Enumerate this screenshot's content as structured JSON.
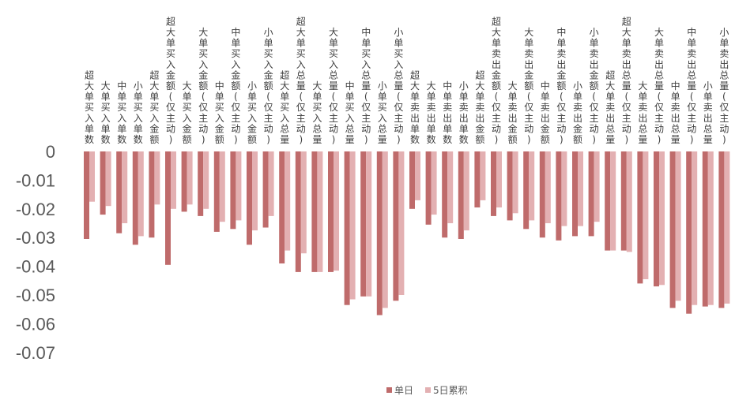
{
  "chart_data": {
    "type": "bar",
    "title": "",
    "xlabel": "",
    "ylabel": "",
    "ylim": [
      -0.07,
      0
    ],
    "yticks": [
      "0",
      "-0.01",
      "-0.02",
      "-0.03",
      "-0.04",
      "-0.05",
      "-0.06",
      "-0.07"
    ],
    "grid": false,
    "legend_position": "bottom",
    "categories": [
      "超大单买入单数",
      "大单买入单数",
      "中单买入单数",
      "小单买入单数",
      "超大单买入金额",
      "超大单买入金额(仅主动)",
      "大单买入金额",
      "大单买入金额(仅主动)",
      "中单买入金额",
      "中单买入金额(仅主动)",
      "小单买入金额",
      "小单买入金额(仅主动)",
      "超大单买入总量",
      "超大单买入总量(仅主动)",
      "大单买入总量",
      "大单买入总量(仅主动)",
      "中单买入总量",
      "中单买入总量(仅主动)",
      "小单买入总量",
      "小单买入总量(仅主动)",
      "超大单卖出单数",
      "大单卖出单数",
      "中单卖出单数",
      "小单卖出单数",
      "超大单卖出金额",
      "超大单卖出金额(仅主动)",
      "大单卖出金额",
      "大单卖出金额(仅主动)",
      "中单卖出金额",
      "中单卖出金额(仅主动)",
      "小单卖出金额",
      "小单卖出金额(仅主动)",
      "超大单卖出总量",
      "超大单卖出总量(仅主动)",
      "大单卖出总量",
      "大单卖出总量(仅主动)",
      "中单卖出总量",
      "中单卖出总量(仅主动)",
      "小单卖出总量",
      "小单卖出总量(仅主动)"
    ],
    "series": [
      {
        "name": "单日",
        "color": "#bf6b6b",
        "values": [
          -0.0305,
          -0.022,
          -0.0285,
          -0.0325,
          -0.03,
          -0.0395,
          -0.021,
          -0.0225,
          -0.028,
          -0.027,
          -0.0325,
          -0.0265,
          -0.039,
          -0.042,
          -0.042,
          -0.042,
          -0.0535,
          -0.0505,
          -0.057,
          -0.052,
          -0.02,
          -0.0255,
          -0.03,
          -0.0305,
          -0.0195,
          -0.0225,
          -0.024,
          -0.027,
          -0.03,
          -0.031,
          -0.0295,
          -0.0295,
          -0.0345,
          -0.0345,
          -0.046,
          -0.047,
          -0.0545,
          -0.0565,
          -0.054,
          -0.0545
        ]
      },
      {
        "name": "5日累积",
        "color": "#e3b0b2",
        "values": [
          -0.0175,
          -0.019,
          -0.025,
          -0.0295,
          -0.0185,
          -0.02,
          -0.0185,
          -0.02,
          -0.0245,
          -0.024,
          -0.0275,
          -0.0225,
          -0.0345,
          -0.0355,
          -0.042,
          -0.0415,
          -0.0515,
          -0.0505,
          -0.0545,
          -0.05,
          -0.017,
          -0.022,
          -0.025,
          -0.0275,
          -0.017,
          -0.0195,
          -0.0215,
          -0.024,
          -0.025,
          -0.026,
          -0.026,
          -0.0245,
          -0.0345,
          -0.035,
          -0.0445,
          -0.0465,
          -0.052,
          -0.0535,
          -0.0535,
          -0.053
        ]
      }
    ]
  }
}
